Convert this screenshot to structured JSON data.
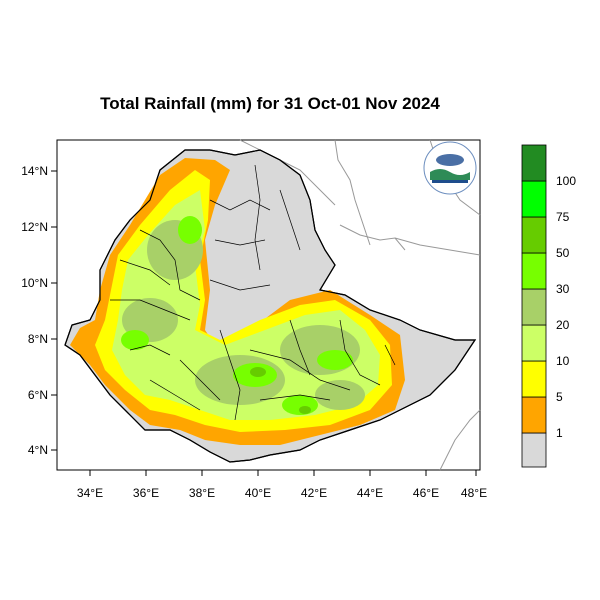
{
  "title": "Total Rainfall (mm) for 31 Oct-01 Nov 2024",
  "map": {
    "lon_range": [
      33,
      48
    ],
    "lat_range": [
      3.2,
      15
    ],
    "lon_ticks": [
      "34°E",
      "36°E",
      "38°E",
      "40°E",
      "42°E",
      "44°E",
      "46°E",
      "48°E"
    ],
    "lat_ticks": [
      "14°N",
      "12°N",
      "10°N",
      "8°N",
      "6°N",
      "4°N"
    ]
  },
  "legend": {
    "labels": [
      "1",
      "5",
      "10",
      "20",
      "30",
      "50",
      "75",
      "100"
    ],
    "colors": [
      "#d9d9d9",
      "#ffa500",
      "#ffff00",
      "#ccff66",
      "#a8d068",
      "#77ff00",
      "#66cc00",
      "#00ff00",
      "#00dd00",
      "#228b22"
    ]
  },
  "colors": {
    "background": "#ffffff",
    "land_outside": "#ffffff",
    "ocean": "#ffffff"
  }
}
